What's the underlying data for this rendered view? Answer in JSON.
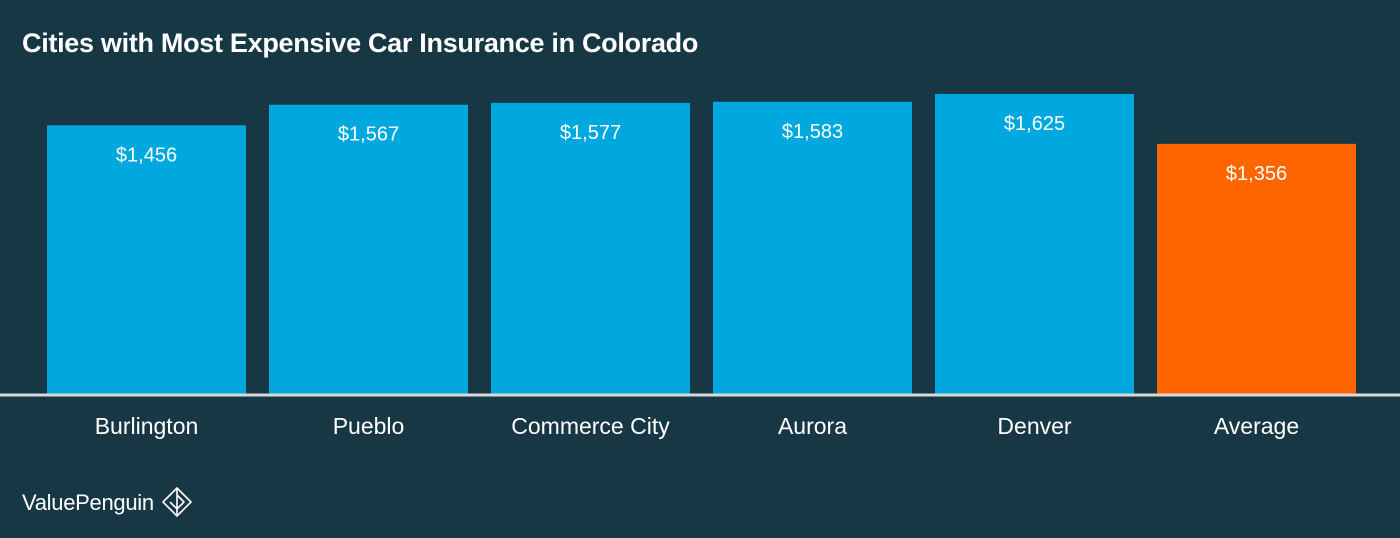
{
  "chart_data": {
    "type": "bar",
    "title": "Cities with Most Expensive Car Insurance in Colorado",
    "categories": [
      "Burlington",
      "Pueblo",
      "Commerce City",
      "Aurora",
      "Denver",
      "Average"
    ],
    "values": [
      1456,
      1567,
      1577,
      1583,
      1625,
      1356
    ],
    "value_labels": [
      "$1,456",
      "$1,567",
      "$1,577",
      "$1,583",
      "$1,625",
      "$1,356"
    ],
    "bar_colors": [
      "#00a8e0",
      "#00a8e0",
      "#00a8e0",
      "#00a8e0",
      "#00a8e0",
      "#ff6600"
    ],
    "ylim": [
      0,
      1625
    ],
    "grid": false,
    "legend": "none"
  },
  "colors": {
    "background": "#183745",
    "bar": "#00a8e0",
    "highlight": "#ff6600",
    "text": "#ffffff",
    "axis": "#d9d9d9"
  },
  "brand": {
    "name": "ValuePenguin",
    "icon": "valuepenguin-logo-icon"
  }
}
